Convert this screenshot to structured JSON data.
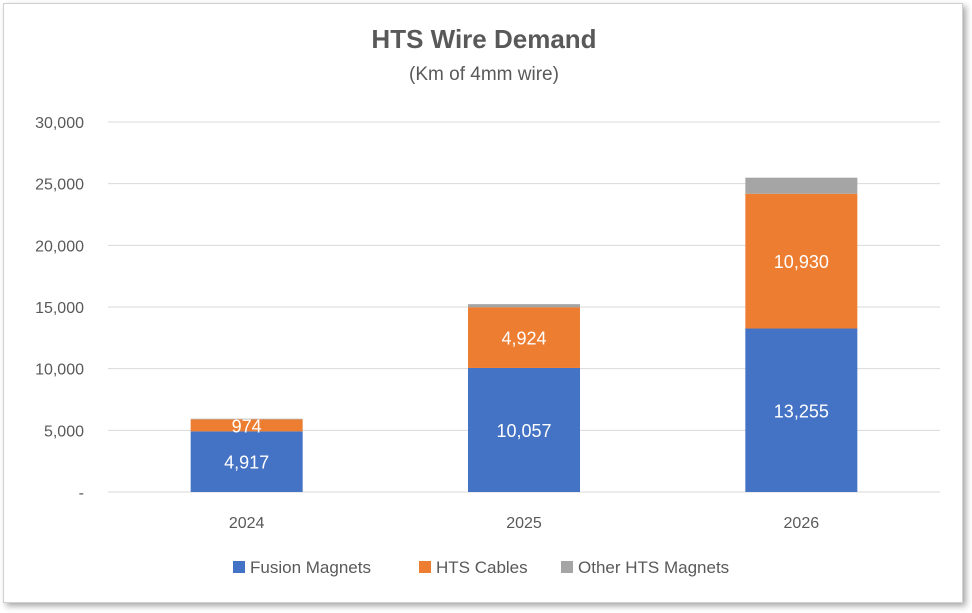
{
  "chart_data": {
    "type": "bar",
    "stacked": true,
    "title": "HTS Wire Demand",
    "subtitle": "(Km of 4mm wire)",
    "xlabel": "",
    "ylabel": "",
    "categories": [
      "2024",
      "2025",
      "2026"
    ],
    "ylim": [
      0,
      30000
    ],
    "y_ticks": [
      {
        "value": 0,
        "label": "-"
      },
      {
        "value": 5000,
        "label": "5,000"
      },
      {
        "value": 10000,
        "label": "10,000"
      },
      {
        "value": 15000,
        "label": "15,000"
      },
      {
        "value": 20000,
        "label": "20,000"
      },
      {
        "value": 25000,
        "label": "25,000"
      },
      {
        "value": 30000,
        "label": "30,000"
      }
    ],
    "grid": true,
    "legend_position": "bottom",
    "series": [
      {
        "name": "Fusion Magnets",
        "color": "#4472C4",
        "values": [
          4917,
          10057,
          13255
        ],
        "labels": [
          "4,917",
          "10,057",
          "13,255"
        ]
      },
      {
        "name": "HTS Cables",
        "color": "#ED7D31",
        "values": [
          974,
          4924,
          10930
        ],
        "labels": [
          "974",
          "4,924",
          "10,930"
        ]
      },
      {
        "name": "Other HTS Magnets",
        "color": "#A5A5A5",
        "values": [
          50,
          250,
          1300
        ],
        "labels": [
          "",
          "",
          ""
        ]
      }
    ]
  }
}
